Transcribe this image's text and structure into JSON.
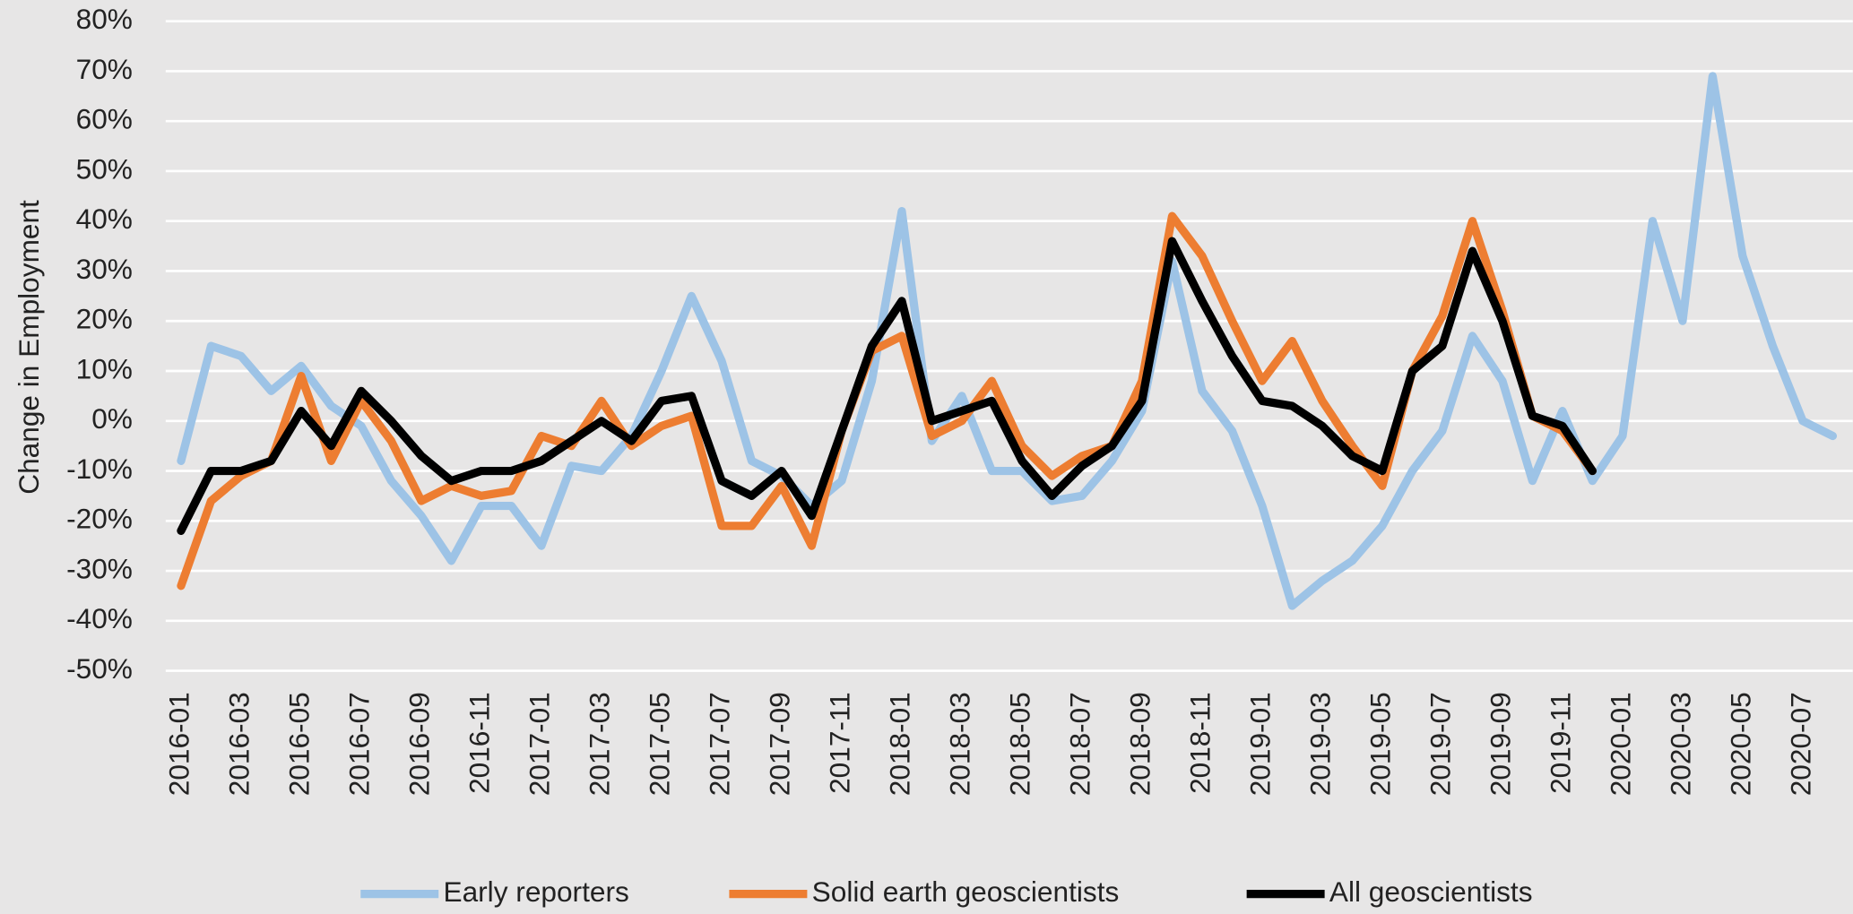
{
  "chart_data": {
    "type": "line",
    "y_label": "Change in Employment",
    "categories": [
      "2016-01",
      null,
      "2016-03",
      null,
      "2016-05",
      null,
      "2016-07",
      null,
      "2016-09",
      null,
      "2016-11",
      null,
      "2017-01",
      null,
      "2017-03",
      null,
      "2017-05",
      null,
      "2017-07",
      null,
      "2017-09",
      null,
      "2017-11",
      null,
      "2018-01",
      null,
      "2018-03",
      null,
      "2018-05",
      null,
      "2018-07",
      null,
      "2018-09",
      null,
      "2018-11",
      null,
      "2019-01",
      null,
      "2019-03",
      null,
      "2019-05",
      null,
      "2019-07",
      null,
      "2019-09",
      null,
      "2019-11",
      null,
      "2020-01",
      null,
      "2020-03",
      null,
      "2020-05",
      null,
      "2020-07",
      null
    ],
    "series": [
      {
        "name": "Early reporters",
        "color": "#9dc3e6",
        "values": [
          -8,
          15,
          13,
          6,
          11,
          3,
          -1,
          -12,
          -19,
          -28,
          -17,
          -17,
          -25,
          -9,
          -10,
          -3,
          10,
          25,
          12,
          -8,
          -11,
          -17,
          -12,
          8,
          42,
          -4,
          5,
          -10,
          -10,
          -16,
          -15,
          -8,
          2,
          32,
          6,
          -2,
          -17,
          -37,
          -32,
          -28,
          -21,
          -10,
          -2,
          17,
          8,
          -12,
          2,
          -12,
          -3,
          40,
          20,
          69,
          33,
          15,
          0,
          -3
        ]
      },
      {
        "name": "Solid earth geoscientists",
        "color": "#ed7d31",
        "values": [
          -33,
          -16,
          -11,
          -8,
          9,
          -8,
          4,
          -4,
          -16,
          -13,
          -15,
          -14,
          -3,
          -5,
          4,
          -5,
          -1,
          1,
          -21,
          -21,
          -13,
          -25,
          -2,
          14,
          17,
          -3,
          0,
          8,
          -5,
          -11,
          -7,
          -5,
          8,
          41,
          33,
          20,
          8,
          16,
          4,
          -5,
          -13,
          10,
          21,
          40,
          22,
          1,
          -2,
          -10,
          null,
          null,
          null,
          null,
          null,
          null,
          null,
          null
        ]
      },
      {
        "name": "All geoscientists",
        "color": "#000000",
        "values": [
          -22,
          -10,
          -10,
          -8,
          2,
          -5,
          6,
          0,
          -7,
          -12,
          -10,
          -10,
          -8,
          -4,
          0,
          -4,
          4,
          5,
          -12,
          -15,
          -10,
          -19,
          -2,
          15,
          24,
          0,
          2,
          4,
          -8,
          -15,
          -9,
          -5,
          4,
          36,
          24,
          13,
          4,
          3,
          -1,
          -7,
          -10,
          10,
          15,
          34,
          20,
          1,
          -1,
          -10,
          null,
          null,
          null,
          null,
          null,
          null,
          null,
          null
        ]
      }
    ],
    "ylim": [
      -50,
      80
    ],
    "yticks": [
      {
        "value": -50,
        "label": "-50%"
      },
      {
        "value": -40,
        "label": "-40%"
      },
      {
        "value": -30,
        "label": "-30%"
      },
      {
        "value": -20,
        "label": "-20%"
      },
      {
        "value": -10,
        "label": "-10%"
      },
      {
        "value": 0,
        "label": "0%"
      },
      {
        "value": 10,
        "label": "10%"
      },
      {
        "value": 20,
        "label": "20%"
      },
      {
        "value": 30,
        "label": "30%"
      },
      {
        "value": 40,
        "label": "40%"
      },
      {
        "value": 50,
        "label": "50%"
      },
      {
        "value": 60,
        "label": "60%"
      },
      {
        "value": 70,
        "label": "70%"
      },
      {
        "value": 80,
        "label": "80%"
      }
    ],
    "grid": true,
    "legend": "bottom"
  }
}
